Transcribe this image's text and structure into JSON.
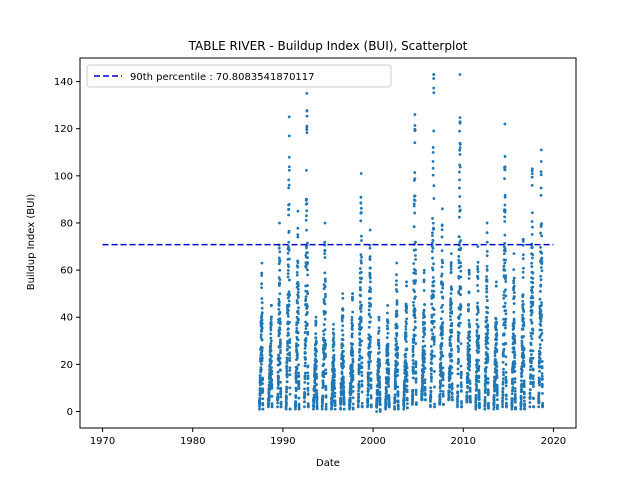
{
  "chart_data": {
    "type": "scatter",
    "title": "TABLE RIVER - Buildup Index (BUI), Scatterplot",
    "xlabel": "Date",
    "ylabel": "Buildup Index (BUI)",
    "xlim": [
      1967.5,
      2022.5
    ],
    "ylim": [
      -7,
      150
    ],
    "xticks": [
      1970,
      1980,
      1990,
      2000,
      2010,
      2020
    ],
    "yticks": [
      0,
      20,
      40,
      60,
      80,
      100,
      120,
      140
    ],
    "grid": false,
    "legend_position": "top-left",
    "point_color": "#1f77b4",
    "series": [
      {
        "seasons": [
          {
            "start": 1987.4,
            "end": 1987.78,
            "peak": 63,
            "min": 1
          },
          {
            "start": 1988.38,
            "end": 1988.8,
            "peak": 45,
            "min": 2
          },
          {
            "start": 1989.4,
            "end": 1989.8,
            "peak": 80,
            "min": 2
          },
          {
            "start": 1990.35,
            "end": 1990.8,
            "peak": 125,
            "min": 1
          },
          {
            "start": 1991.38,
            "end": 1991.8,
            "peak": 85,
            "min": 1
          },
          {
            "start": 1992.38,
            "end": 1992.82,
            "peak": 135,
            "min": 2
          },
          {
            "start": 1993.38,
            "end": 1993.8,
            "peak": 40,
            "min": 1
          },
          {
            "start": 1994.35,
            "end": 1994.8,
            "peak": 80,
            "min": 1
          },
          {
            "start": 1995.38,
            "end": 1995.8,
            "peak": 37,
            "min": 1
          },
          {
            "start": 1996.38,
            "end": 1996.8,
            "peak": 50,
            "min": 1
          },
          {
            "start": 1997.38,
            "end": 1997.8,
            "peak": 50,
            "min": 1
          },
          {
            "start": 1998.35,
            "end": 1998.8,
            "peak": 101,
            "min": 2
          },
          {
            "start": 1999.38,
            "end": 1999.8,
            "peak": 77,
            "min": 2
          },
          {
            "start": 2000.38,
            "end": 2000.8,
            "peak": 40,
            "min": 0
          },
          {
            "start": 2001.38,
            "end": 2001.8,
            "peak": 45,
            "min": 1
          },
          {
            "start": 2002.38,
            "end": 2002.8,
            "peak": 63,
            "min": 1
          },
          {
            "start": 2003.38,
            "end": 2003.8,
            "peak": 55,
            "min": 1
          },
          {
            "start": 2004.35,
            "end": 2004.8,
            "peak": 126,
            "min": 3
          },
          {
            "start": 2005.38,
            "end": 2005.8,
            "peak": 60,
            "min": 5
          },
          {
            "start": 2006.35,
            "end": 2006.82,
            "peak": 143,
            "min": 2
          },
          {
            "start": 2007.38,
            "end": 2007.8,
            "peak": 86,
            "min": 3
          },
          {
            "start": 2008.38,
            "end": 2008.8,
            "peak": 67,
            "min": 5
          },
          {
            "start": 2009.35,
            "end": 2009.82,
            "peak": 143,
            "min": 2
          },
          {
            "start": 2010.38,
            "end": 2010.8,
            "peak": 60,
            "min": 4
          },
          {
            "start": 2011.38,
            "end": 2011.8,
            "peak": 70,
            "min": 1
          },
          {
            "start": 2012.38,
            "end": 2012.8,
            "peak": 80,
            "min": 1
          },
          {
            "start": 2013.38,
            "end": 2013.8,
            "peak": 55,
            "min": 1
          },
          {
            "start": 2014.35,
            "end": 2014.8,
            "peak": 122,
            "min": 2
          },
          {
            "start": 2015.38,
            "end": 2015.8,
            "peak": 67,
            "min": 1
          },
          {
            "start": 2016.38,
            "end": 2016.8,
            "peak": 73,
            "min": 1
          },
          {
            "start": 2017.38,
            "end": 2017.8,
            "peak": 103,
            "min": 2
          },
          {
            "start": 2018.35,
            "end": 2018.8,
            "peak": 111,
            "min": 2
          }
        ]
      }
    ],
    "reference_line": {
      "label": "90th percentile : 70.8083541870117",
      "y": 70.8083541870117,
      "x_range": [
        1970,
        2020
      ],
      "color": "#0000cc",
      "style": "dashed"
    }
  }
}
